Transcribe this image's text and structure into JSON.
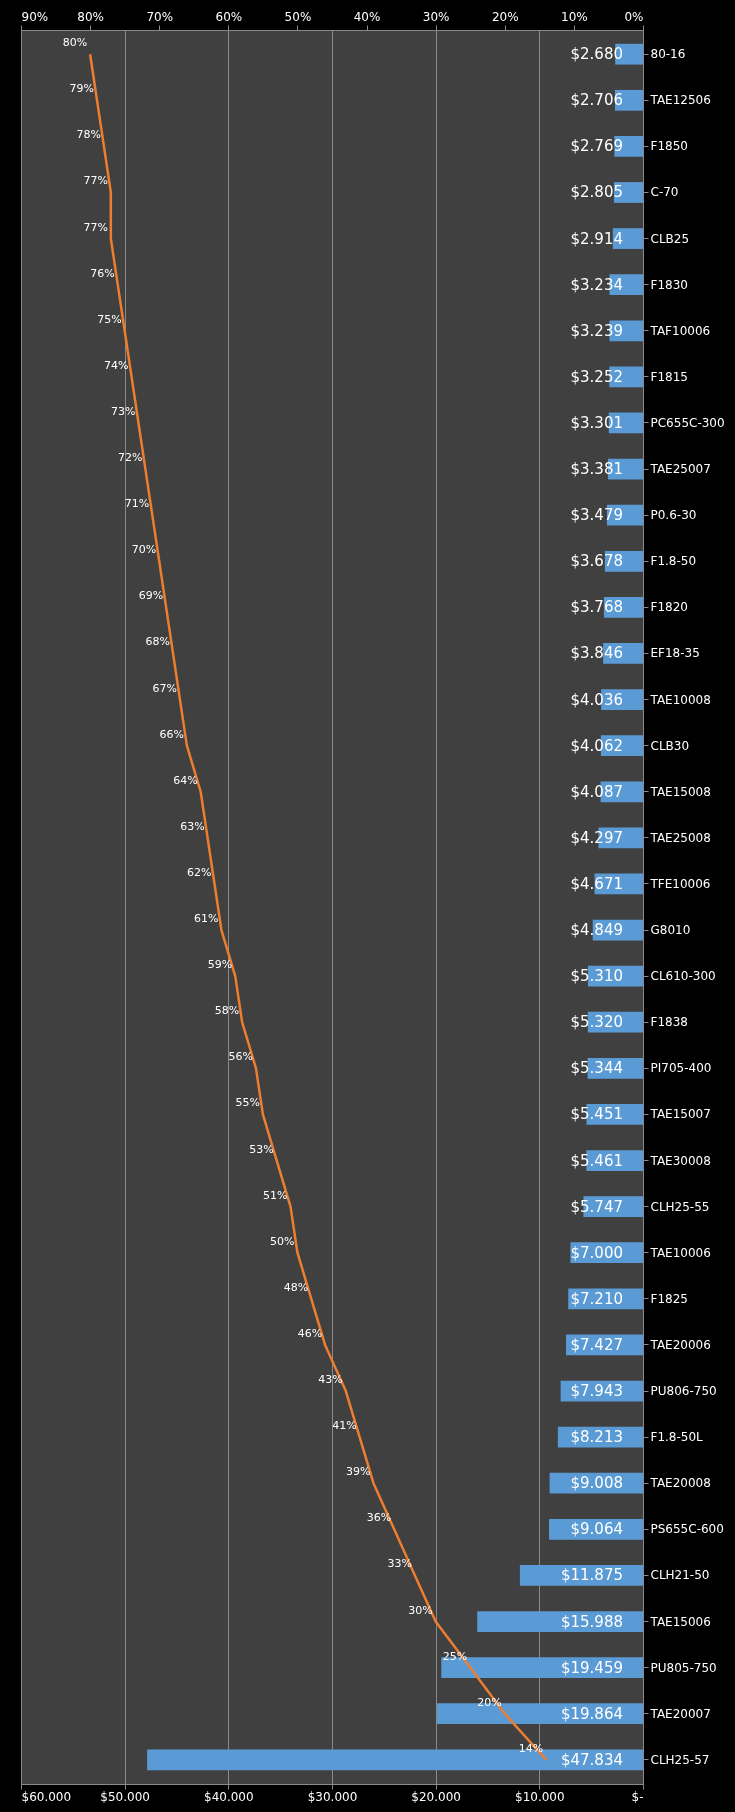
{
  "chart_data": {
    "type": "bar",
    "orientation": "horizontal",
    "categories": [
      "80-16",
      "TAE12506",
      "F1850",
      "C-70",
      "CLB25",
      "F1830",
      "TAF10006",
      "F1815",
      "PC655C-300",
      "TAE25007",
      "P0.6-30",
      "F1.8-50",
      "F1820",
      "EF18-35",
      "TAE10008",
      "CLB30",
      "TAE15008",
      "TAE25008",
      "TFE10006",
      "G8010",
      "CL610-300",
      "F1838",
      "PI705-400",
      "TAE15007",
      "TAE30008",
      "CLH25-55",
      "TAE10006",
      "F1825",
      "TAE20006",
      "PU806-750",
      "F1.8-50L",
      "TAE20008",
      "PS655C-600",
      "CLH21-50",
      "TAE15006",
      "PU805-750",
      "TAE20007",
      "CLH25-57"
    ],
    "series": [
      {
        "type": "bar",
        "color": "#5b9bd5",
        "values": [
          2.68,
          2.706,
          2.769,
          2.805,
          2.914,
          3.234,
          3.239,
          3.252,
          3.301,
          3.381,
          3.479,
          3.678,
          3.768,
          3.846,
          4.036,
          4.062,
          4.087,
          4.297,
          4.671,
          4.849,
          5.31,
          5.32,
          5.344,
          5.451,
          5.461,
          5.747,
          7.0,
          7.21,
          7.427,
          7.943,
          8.213,
          9.008,
          9.064,
          11.875,
          15.988,
          19.459,
          19.864,
          47.834
        ],
        "value_labels": [
          "$2.680",
          "$2.706",
          "$2.769",
          "$2.805",
          "$2.914",
          "$3.234",
          "$3.239",
          "$3.252",
          "$3.301",
          "$3.381",
          "$3.479",
          "$3.678",
          "$3.768",
          "$3.846",
          "$4.036",
          "$4.062",
          "$4.087",
          "$4.297",
          "$4.671",
          "$4.849",
          "$5.310",
          "$5.320",
          "$5.344",
          "$5.451",
          "$5.461",
          "$5.747",
          "$7.000",
          "$7.210",
          "$7.427",
          "$7.943",
          "$8.213",
          "$9.008",
          "$9.064",
          "$11.875",
          "$15.988",
          "$19.459",
          "$19.864",
          "$47.834"
        ]
      },
      {
        "type": "line",
        "axis": "x2",
        "color": "#ed7d31",
        "values": [
          80,
          79,
          78,
          77,
          77,
          76,
          75,
          74,
          73,
          72,
          71,
          70,
          69,
          68,
          67,
          66,
          64,
          63,
          62,
          61,
          59,
          58,
          56,
          55,
          53,
          51,
          50,
          48,
          46,
          43,
          41,
          39,
          36,
          33,
          30,
          25,
          20,
          14
        ],
        "value_labels": [
          "80%",
          "79%",
          "78%",
          "77%",
          "77%",
          "76%",
          "75%",
          "74%",
          "73%",
          "72%",
          "71%",
          "70%",
          "69%",
          "68%",
          "67%",
          "66%",
          "64%",
          "63%",
          "62%",
          "61%",
          "59%",
          "58%",
          "56%",
          "55%",
          "53%",
          "51%",
          "50%",
          "48%",
          "46%",
          "43%",
          "41%",
          "39%",
          "36%",
          "33%",
          "30%",
          "25%",
          "20%",
          "14%"
        ]
      }
    ],
    "xlim": [
      60,
      0
    ],
    "xticks": [
      {
        "value": 60,
        "label": "$60.000"
      },
      {
        "value": 50,
        "label": "$50.000"
      },
      {
        "value": 40,
        "label": "$40.000"
      },
      {
        "value": 30,
        "label": "$30.000"
      },
      {
        "value": 20,
        "label": "$20.000"
      },
      {
        "value": 10,
        "label": "$10.000"
      },
      {
        "value": 0,
        "label": "$-"
      }
    ],
    "x2lim": [
      90,
      0
    ],
    "x2ticks": [
      {
        "value": 90,
        "label": "90%"
      },
      {
        "value": 80,
        "label": "80%"
      },
      {
        "value": 70,
        "label": "70%"
      },
      {
        "value": 60,
        "label": "60%"
      },
      {
        "value": 50,
        "label": "50%"
      },
      {
        "value": 40,
        "label": "40%"
      },
      {
        "value": 30,
        "label": "30%"
      },
      {
        "value": 20,
        "label": "20%"
      },
      {
        "value": 10,
        "label": "10%"
      },
      {
        "value": 0,
        "label": "0%"
      }
    ],
    "grid": "x",
    "marker": "none",
    "line_style": "solid"
  }
}
